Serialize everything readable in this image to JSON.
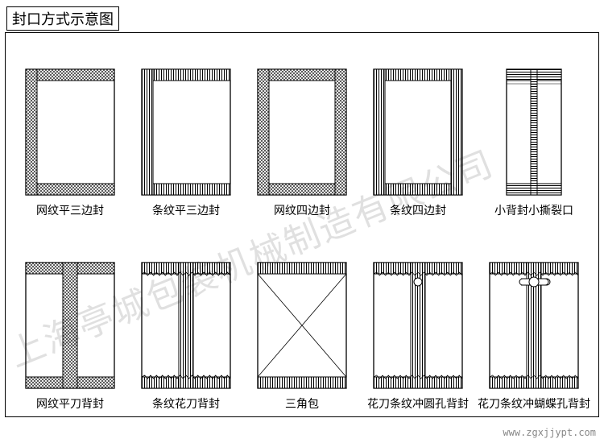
{
  "title": "封口方式示意图",
  "watermark": "上海亭城包装机械制造有限公司",
  "footer_url": "www.zgxjjypt.com",
  "svg": {
    "w": 112,
    "h": 158,
    "stroke": "#000000",
    "narrow_w": 70,
    "fill": "#ffffff"
  },
  "row1": [
    {
      "id": "mesh-flat-3side",
      "label": "网纹平三边封",
      "seal": "mesh",
      "sides": "three",
      "body": "plain"
    },
    {
      "id": "stripe-flat-3side",
      "label": "条纹平三边封",
      "seal": "stripe",
      "sides": "three",
      "body": "plain"
    },
    {
      "id": "mesh-4side",
      "label": "网纹四边封",
      "seal": "mesh",
      "sides": "four",
      "body": "plain"
    },
    {
      "id": "stripe-4side",
      "label": "条纹四边封",
      "seal": "stripe",
      "sides": "four",
      "body": "plain"
    },
    {
      "id": "small-back-tear",
      "label": "小背封小撕裂口",
      "seal": "stripe-h",
      "sides": "narrow",
      "body": "back-tear"
    }
  ],
  "row2": [
    {
      "id": "mesh-flat-back",
      "label": "网纹平刀背封",
      "seal": "mesh",
      "sides": "topbot",
      "body": "center-stripe"
    },
    {
      "id": "stripe-cut-back",
      "label": "条纹花刀背封",
      "seal": "stripe",
      "sides": "topbot",
      "body": "center-stripe-zig"
    },
    {
      "id": "triangle-pack",
      "label": "三角包",
      "seal": "stripe",
      "sides": "topbot",
      "body": "triangle"
    },
    {
      "id": "stripe-round-hole",
      "label": "花刀条纹冲圆孔背封",
      "seal": "stripe",
      "sides": "topbot",
      "body": "center-round-hole"
    },
    {
      "id": "stripe-bfly-hole",
      "label": "花刀条纹冲蝴蝶孔背封",
      "seal": "stripe",
      "sides": "topbot",
      "body": "center-butterfly-hole"
    }
  ]
}
